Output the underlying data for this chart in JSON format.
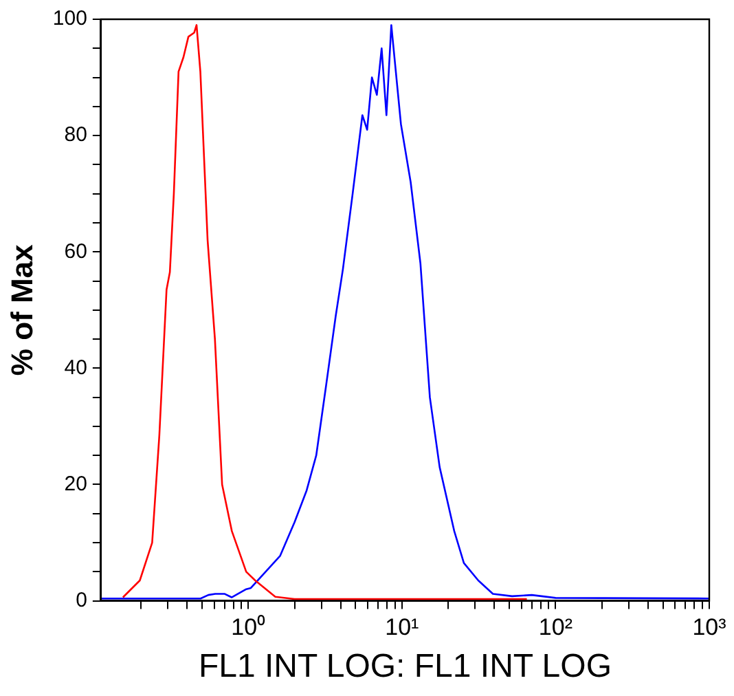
{
  "chart_data": {
    "type": "line",
    "xlabel": "FL1 INT LOG: FL1 INT LOG",
    "ylabel": "% of Max",
    "log": "x",
    "xlim": [
      0.11,
      1000
    ],
    "xticks": [
      {
        "value": 0.2,
        "label": null
      },
      {
        "value": 0.3,
        "label": null
      },
      {
        "value": 0.4,
        "label": null
      },
      {
        "value": 0.5,
        "label": null
      },
      {
        "value": 0.6,
        "label": null
      },
      {
        "value": 0.7,
        "label": null
      },
      {
        "value": 0.8,
        "label": null
      },
      {
        "value": 0.9,
        "label": null
      },
      {
        "value": 1,
        "label": "10⁰"
      },
      {
        "value": 2,
        "label": null
      },
      {
        "value": 3,
        "label": null
      },
      {
        "value": 4,
        "label": null
      },
      {
        "value": 5,
        "label": null
      },
      {
        "value": 6,
        "label": null
      },
      {
        "value": 7,
        "label": null
      },
      {
        "value": 8,
        "label": null
      },
      {
        "value": 9,
        "label": null
      },
      {
        "value": 10,
        "label": "10¹"
      },
      {
        "value": 20,
        "label": null
      },
      {
        "value": 30,
        "label": null
      },
      {
        "value": 40,
        "label": null
      },
      {
        "value": 50,
        "label": null
      },
      {
        "value": 60,
        "label": null
      },
      {
        "value": 70,
        "label": null
      },
      {
        "value": 80,
        "label": null
      },
      {
        "value": 90,
        "label": null
      },
      {
        "value": 100,
        "label": "10²"
      },
      {
        "value": 200,
        "label": null
      },
      {
        "value": 300,
        "label": null
      },
      {
        "value": 400,
        "label": null
      },
      {
        "value": 500,
        "label": null
      },
      {
        "value": 600,
        "label": null
      },
      {
        "value": 700,
        "label": null
      },
      {
        "value": 800,
        "label": null
      },
      {
        "value": 900,
        "label": null
      },
      {
        "value": 1000,
        "label": "10³"
      }
    ],
    "ylim": [
      0,
      100
    ],
    "yticks": [
      0,
      {
        "value": 5,
        "label": null
      },
      {
        "value": 10,
        "label": null
      },
      {
        "value": 15,
        "label": null
      },
      20,
      {
        "value": 25,
        "label": null
      },
      {
        "value": 30,
        "label": null
      },
      {
        "value": 35,
        "label": null
      },
      40,
      {
        "value": 45,
        "label": null
      },
      {
        "value": 50,
        "label": null
      },
      {
        "value": 55,
        "label": null
      },
      60,
      {
        "value": 65,
        "label": null
      },
      {
        "value": 70,
        "label": null
      },
      {
        "value": 75,
        "label": null
      },
      80,
      {
        "value": 85,
        "label": null
      },
      {
        "value": 90,
        "label": null
      },
      {
        "value": 95,
        "label": null
      },
      100
    ],
    "series": [
      {
        "color": "#ff0000",
        "x": [
          0.153,
          0.197,
          0.237,
          0.264,
          0.294,
          0.309,
          0.328,
          0.352,
          0.379,
          0.408,
          0.445,
          0.461,
          0.488,
          0.544,
          0.607,
          0.676,
          0.782,
          0.97,
          1.11,
          1.5,
          2,
          65
        ],
        "values": [
          0.6,
          3.5,
          10,
          28.5,
          53.5,
          56.5,
          70,
          91,
          93.5,
          97,
          97.7,
          99,
          91,
          62,
          45,
          20,
          12,
          5,
          3.5,
          0.7,
          0.3,
          0.3
        ]
      },
      {
        "color": "#0000ff",
        "x": [
          0.11,
          0.49,
          0.55,
          0.61,
          0.7,
          0.78,
          0.97,
          1.04,
          1.61,
          2,
          2.4,
          2.77,
          3.21,
          3.71,
          4.13,
          4.78,
          5.53,
          5.94,
          6.38,
          6.87,
          7.38,
          7.93,
          8.53,
          9.85,
          11.4,
          13.2,
          15.2,
          17.6,
          21.9,
          25.3,
          31.4,
          39.1,
          52.1,
          70,
          100,
          1000
        ],
        "values": [
          0.4,
          0.4,
          1,
          1.2,
          1.2,
          0.6,
          2,
          2.2,
          7.7,
          13.5,
          19,
          25,
          37,
          49,
          57,
          70,
          83.5,
          81,
          90,
          87,
          95,
          83.5,
          99,
          82,
          72,
          58,
          35,
          23,
          12,
          6.5,
          3.5,
          1.2,
          0.8,
          1,
          0.5,
          0.4
        ]
      }
    ]
  }
}
